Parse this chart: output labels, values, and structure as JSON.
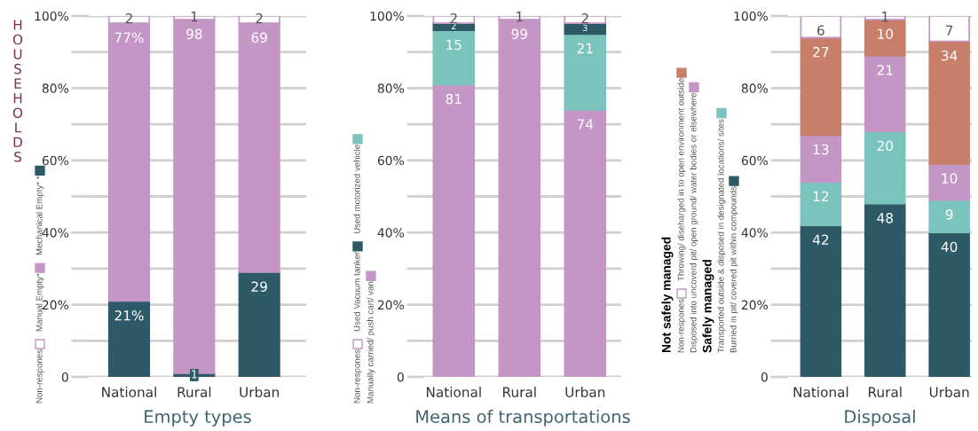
{
  "chart_data": [
    {
      "type": "bar",
      "title": "Empty types",
      "ylabel": "HOUSEHOLDS",
      "stacked": true,
      "grid": "y",
      "legend": "left",
      "categories": [
        "National",
        "Rural",
        "Urban"
      ],
      "ylim": [
        0,
        100
      ],
      "yticks": [
        {
          "value": 0,
          "label": "0"
        },
        {
          "value": 10,
          "label": null
        },
        {
          "value": 20,
          "label": "20%"
        },
        {
          "value": 30,
          "label": null
        },
        {
          "value": 40,
          "label": "40%"
        },
        {
          "value": 50,
          "label": null
        },
        {
          "value": 60,
          "label": "60%"
        },
        {
          "value": 70,
          "label": null
        },
        {
          "value": 80,
          "label": "80%"
        },
        {
          "value": 90,
          "label": null
        },
        {
          "value": 100,
          "label": "100%"
        }
      ],
      "series": [
        {
          "name": "Mechanical Empty* *",
          "color": "#2e5a68",
          "values": [
            21,
            1,
            29
          ],
          "value_labels": [
            "21%",
            "1",
            "29"
          ]
        },
        {
          "name": "Manual Empty*",
          "color": "#c396c6",
          "values": [
            77,
            98,
            69
          ],
          "value_labels": [
            "77%",
            "98",
            "69"
          ]
        },
        {
          "name": "Non-respones",
          "color": "#ffffff",
          "values": [
            2,
            1,
            2
          ],
          "value_labels": [
            "2",
            "1",
            "2"
          ]
        }
      ]
    },
    {
      "type": "bar",
      "title": "Means of transportations",
      "stacked": true,
      "grid": "y",
      "legend": "left",
      "categories": [
        "National",
        "Rural",
        "Urban"
      ],
      "ylim": [
        0,
        100
      ],
      "yticks": [
        {
          "value": 0,
          "label": "0"
        },
        {
          "value": 10,
          "label": null
        },
        {
          "value": 20,
          "label": "20%"
        },
        {
          "value": 30,
          "label": null
        },
        {
          "value": 40,
          "label": "40%"
        },
        {
          "value": 50,
          "label": null
        },
        {
          "value": 60,
          "label": "60%"
        },
        {
          "value": 70,
          "label": null
        },
        {
          "value": 80,
          "label": "80%"
        },
        {
          "value": 90,
          "label": null
        },
        {
          "value": 100,
          "label": "100%"
        }
      ],
      "series": [
        {
          "name": "Manually carried/ push cart/ van",
          "color": "#c396c6",
          "values": [
            81,
            99,
            74
          ],
          "value_labels": [
            "81",
            "99",
            "74"
          ]
        },
        {
          "name": "Used motorized vehicle",
          "color": "#7bc3bd",
          "values": [
            15,
            0,
            21
          ],
          "value_labels": [
            "15",
            null,
            "21"
          ]
        },
        {
          "name": "Used Vacuum tanker",
          "color": "#2e5a68",
          "values": [
            2,
            0,
            3
          ],
          "value_labels": [
            "2",
            null,
            "3"
          ]
        },
        {
          "name": "Non-respones",
          "color": "#ffffff",
          "values": [
            2,
            1,
            2
          ],
          "value_labels": [
            "2",
            "1",
            "2"
          ]
        }
      ]
    },
    {
      "type": "bar",
      "title": "Disposal",
      "stacked": true,
      "grid": "y",
      "legend": "left",
      "annotations": [
        "Not safely managed",
        "Safely managed"
      ],
      "categories": [
        "National",
        "Rural",
        "Urban"
      ],
      "ylim": [
        0,
        100
      ],
      "yticks": [
        {
          "value": 0,
          "label": "0"
        },
        {
          "value": 10,
          "label": null
        },
        {
          "value": 20,
          "label": "20%"
        },
        {
          "value": 30,
          "label": null
        },
        {
          "value": 40,
          "label": "40%"
        },
        {
          "value": 50,
          "label": null
        },
        {
          "value": 60,
          "label": "60%"
        },
        {
          "value": 70,
          "label": null
        },
        {
          "value": 80,
          "label": "80%"
        },
        {
          "value": 90,
          "label": null
        },
        {
          "value": 100,
          "label": "100%"
        }
      ],
      "series": [
        {
          "name": "Burried in pit/ covered pit within compounds",
          "color": "#2e5a68",
          "values": [
            42,
            48,
            40
          ],
          "value_labels": [
            "42",
            "48",
            "40"
          ]
        },
        {
          "name": "Transported outside & disposed in designated locations/ sites",
          "color": "#7bc3bd",
          "values": [
            12,
            20,
            9
          ],
          "value_labels": [
            "12",
            "20",
            "9"
          ]
        },
        {
          "name": "Disposed into uncoverd pit/ open ground/ water bodies or elsewhere",
          "color": "#c396c6",
          "values": [
            13,
            21,
            10
          ],
          "value_labels": [
            "13",
            "21",
            "10"
          ]
        },
        {
          "name": "Throwing/ diseharged in to open environment outside",
          "color": "#c77f6a",
          "values": [
            27,
            10,
            34
          ],
          "value_labels": [
            "27",
            "10",
            "34"
          ]
        },
        {
          "name": "Non-respones",
          "color": "#ffffff",
          "values": [
            6,
            1,
            7
          ],
          "value_labels": [
            "6",
            "1",
            "7"
          ]
        }
      ]
    }
  ]
}
